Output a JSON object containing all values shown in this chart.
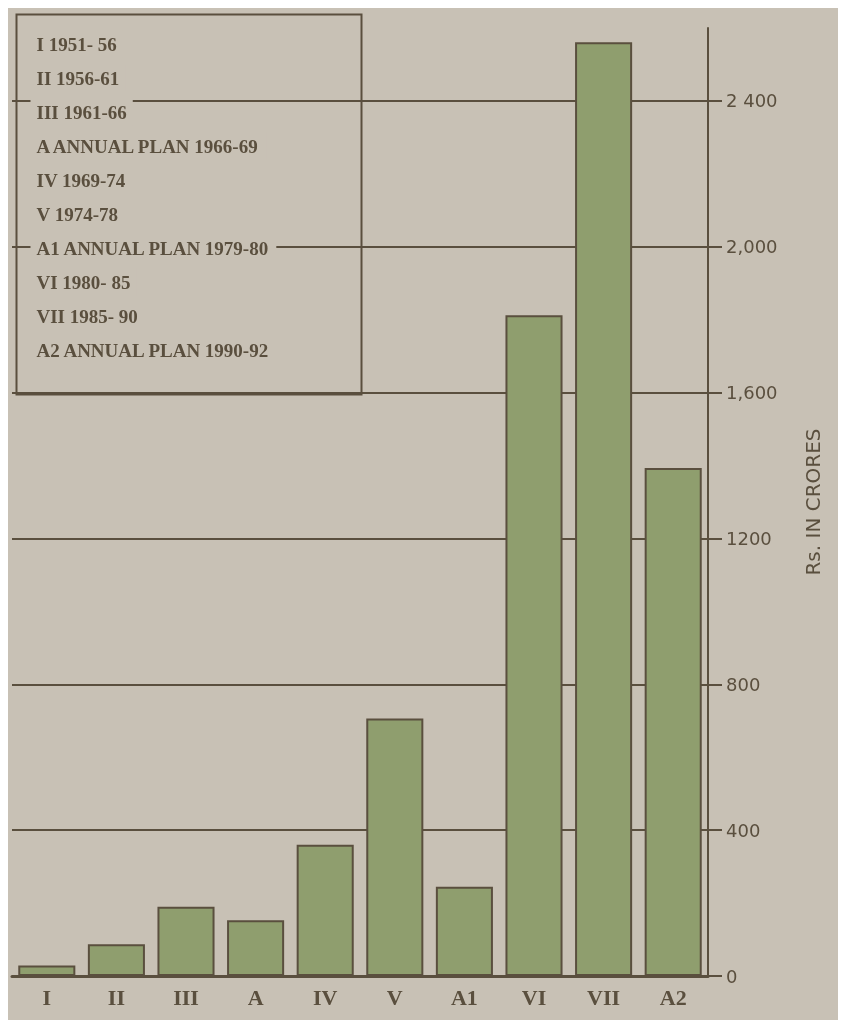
{
  "chart_data": {
    "type": "bar",
    "ylabel": "Rs. IN CRORES",
    "categories": [
      "I",
      "II",
      "III",
      "A",
      "IV",
      "V",
      "A1",
      "VI",
      "VII",
      "A2"
    ],
    "values": [
      29,
      87,
      190,
      153,
      360,
      706,
      245,
      1812,
      2561,
      1393
    ],
    "color": "#8f9e6e",
    "ylim": [
      0,
      2600
    ],
    "yticks": [
      0,
      400,
      800,
      1200,
      {
        "value": 1600,
        "label": "1,600"
      },
      {
        "value": 2000,
        "label": "2,000"
      },
      {
        "value": 2400,
        "label": "2 400"
      }
    ],
    "grid": "y",
    "annotations": [
      "I 1951- 56",
      "II 1956-61",
      "III 1961-66",
      "A ANNUAL PLAN 1966-69",
      "IV 1969-74",
      "V 1974-78",
      "A1 ANNUAL PLAN 1979-80",
      "VI 1980- 85",
      "VII 1985- 90",
      "A2 ANNUAL PLAN 1990-92"
    ]
  }
}
